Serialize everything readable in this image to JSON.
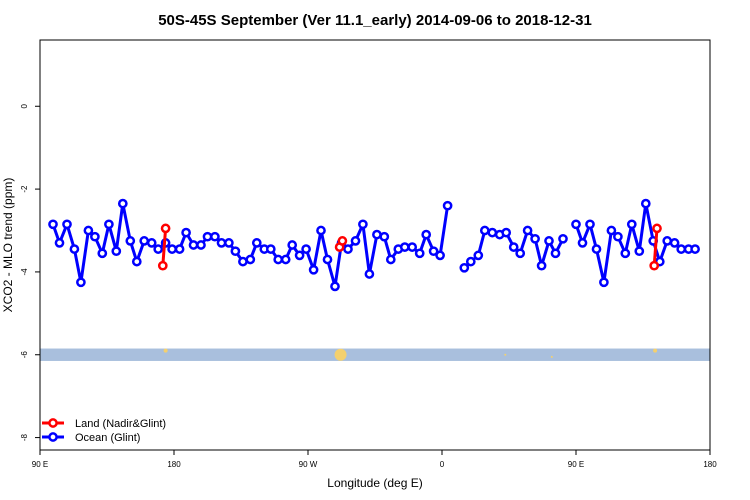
{
  "chart_data": {
    "type": "line",
    "title": "50S-45S September (Ver 11.1_early)   2014-09-06 to 2018-12-31",
    "xlabel": "Longitude (deg E)",
    "ylabel": "XCO2 - MLO trend (ppm)",
    "xlim": [
      90,
      450
    ],
    "ylim": [
      -8.3,
      1.6
    ],
    "x_ticks": [
      {
        "value": 90,
        "label": "90 E"
      },
      {
        "value": 162,
        "label": "180"
      },
      {
        "value": 234,
        "label": "90 W"
      },
      {
        "value": 306,
        "label": "0"
      },
      {
        "value": 378,
        "label": "90 E"
      },
      {
        "value": 450,
        "label": "180"
      }
    ],
    "y_ticks": [
      {
        "value": 0,
        "label": "0"
      },
      {
        "value": -2,
        "label": "-2"
      },
      {
        "value": -4,
        "label": "-4"
      },
      {
        "value": -6,
        "label": "-6"
      },
      {
        "value": -8,
        "label": "-8"
      }
    ],
    "series": [
      {
        "name": "Land (Nadir&Glint)",
        "color": "#ff0000",
        "segments": [
          [
            [
              156,
              -3.85
            ],
            [
              157.5,
              -2.95
            ]
          ],
          [
            [
              251,
              -3.4
            ],
            [
              252.5,
              -3.25
            ]
          ],
          [
            [
              420,
              -3.85
            ],
            [
              421.5,
              -2.95
            ]
          ]
        ]
      },
      {
        "name": "Ocean (Glint)",
        "color": "#0000ff",
        "segments": [
          [
            [
              97,
              -2.85
            ],
            [
              100.5,
              -3.3
            ],
            [
              104.5,
              -2.85
            ],
            [
              108.5,
              -3.45
            ],
            [
              112,
              -4.25
            ],
            [
              116,
              -3.0
            ],
            [
              119.5,
              -3.15
            ],
            [
              123.5,
              -3.55
            ],
            [
              127,
              -2.85
            ],
            [
              131,
              -3.5
            ],
            [
              134.5,
              -2.35
            ],
            [
              138.5,
              -3.25
            ],
            [
              142,
              -3.75
            ],
            [
              146,
              -3.25
            ],
            [
              150,
              -3.3
            ],
            [
              153.5,
              -3.45
            ],
            [
              157.5,
              -3.3
            ],
            [
              161,
              -3.45
            ],
            [
              165,
              -3.45
            ],
            [
              168.5,
              -3.05
            ],
            [
              172.5,
              -3.35
            ],
            [
              176.5,
              -3.35
            ],
            [
              180,
              -3.15
            ],
            [
              184,
              -3.15
            ],
            [
              187.5,
              -3.3
            ],
            [
              191.5,
              -3.3
            ],
            [
              195,
              -3.5
            ],
            [
              199,
              -3.75
            ],
            [
              203,
              -3.7
            ],
            [
              206.5,
              -3.3
            ],
            [
              210.5,
              -3.45
            ],
            [
              214,
              -3.45
            ],
            [
              218,
              -3.7
            ],
            [
              222,
              -3.7
            ],
            [
              225.5,
              -3.35
            ],
            [
              229.5,
              -3.6
            ],
            [
              233,
              -3.45
            ],
            [
              237,
              -3.95
            ],
            [
              241,
              -3.0
            ],
            [
              244.5,
              -3.7
            ],
            [
              248.5,
              -4.35
            ],
            [
              252,
              -3.3
            ],
            [
              255.5,
              -3.45
            ],
            [
              259.5,
              -3.25
            ],
            [
              263.5,
              -2.85
            ],
            [
              267,
              -4.05
            ],
            [
              271,
              -3.1
            ],
            [
              275,
              -3.15
            ],
            [
              278.5,
              -3.7
            ],
            [
              282.5,
              -3.45
            ],
            [
              286,
              -3.4
            ],
            [
              290,
              -3.4
            ],
            [
              294,
              -3.55
            ],
            [
              297.5,
              -3.1
            ],
            [
              301.5,
              -3.5
            ],
            [
              305,
              -3.6
            ],
            [
              309,
              -2.4
            ]
          ],
          [
            [
              318,
              -3.9
            ],
            [
              321.5,
              -3.75
            ],
            [
              325.5,
              -3.6
            ],
            [
              329,
              -3.0
            ],
            [
              333,
              -3.05
            ],
            [
              337,
              -3.1
            ],
            [
              340.5,
              -3.05
            ],
            [
              344.5,
              -3.4
            ],
            [
              348,
              -3.55
            ],
            [
              352,
              -3.0
            ],
            [
              356,
              -3.2
            ],
            [
              359.5,
              -3.85
            ],
            [
              363.5,
              -3.25
            ],
            [
              367,
              -3.55
            ],
            [
              371,
              -3.2
            ]
          ],
          [
            [
              378,
              -2.85
            ],
            [
              381.5,
              -3.3
            ],
            [
              385.5,
              -2.85
            ],
            [
              389,
              -3.45
            ],
            [
              393,
              -4.25
            ],
            [
              397,
              -3.0
            ],
            [
              400.5,
              -3.15
            ],
            [
              404.5,
              -3.55
            ],
            [
              408,
              -2.85
            ],
            [
              412,
              -3.5
            ],
            [
              415.5,
              -2.35
            ],
            [
              419.5,
              -3.25
            ],
            [
              423,
              -3.75
            ],
            [
              427,
              -3.25
            ],
            [
              431,
              -3.3
            ],
            [
              434.5,
              -3.45
            ],
            [
              438.5,
              -3.45
            ],
            [
              442,
              -3.45
            ]
          ]
        ]
      }
    ],
    "background_band": {
      "y_range": [
        -6.15,
        -5.85
      ],
      "color": "#a9bfdd"
    },
    "band_markers": {
      "color": "#f4d06e",
      "points": [
        {
          "x": 157.5,
          "y": -5.9,
          "size": 4
        },
        {
          "x": 251.5,
          "y": -6.0,
          "size": 12
        },
        {
          "x": 340,
          "y": -6.0,
          "size": 2
        },
        {
          "x": 365,
          "y": -6.05,
          "size": 2
        },
        {
          "x": 420.5,
          "y": -5.9,
          "size": 4
        }
      ]
    },
    "legend_position": "bottom-left",
    "grid": false
  }
}
